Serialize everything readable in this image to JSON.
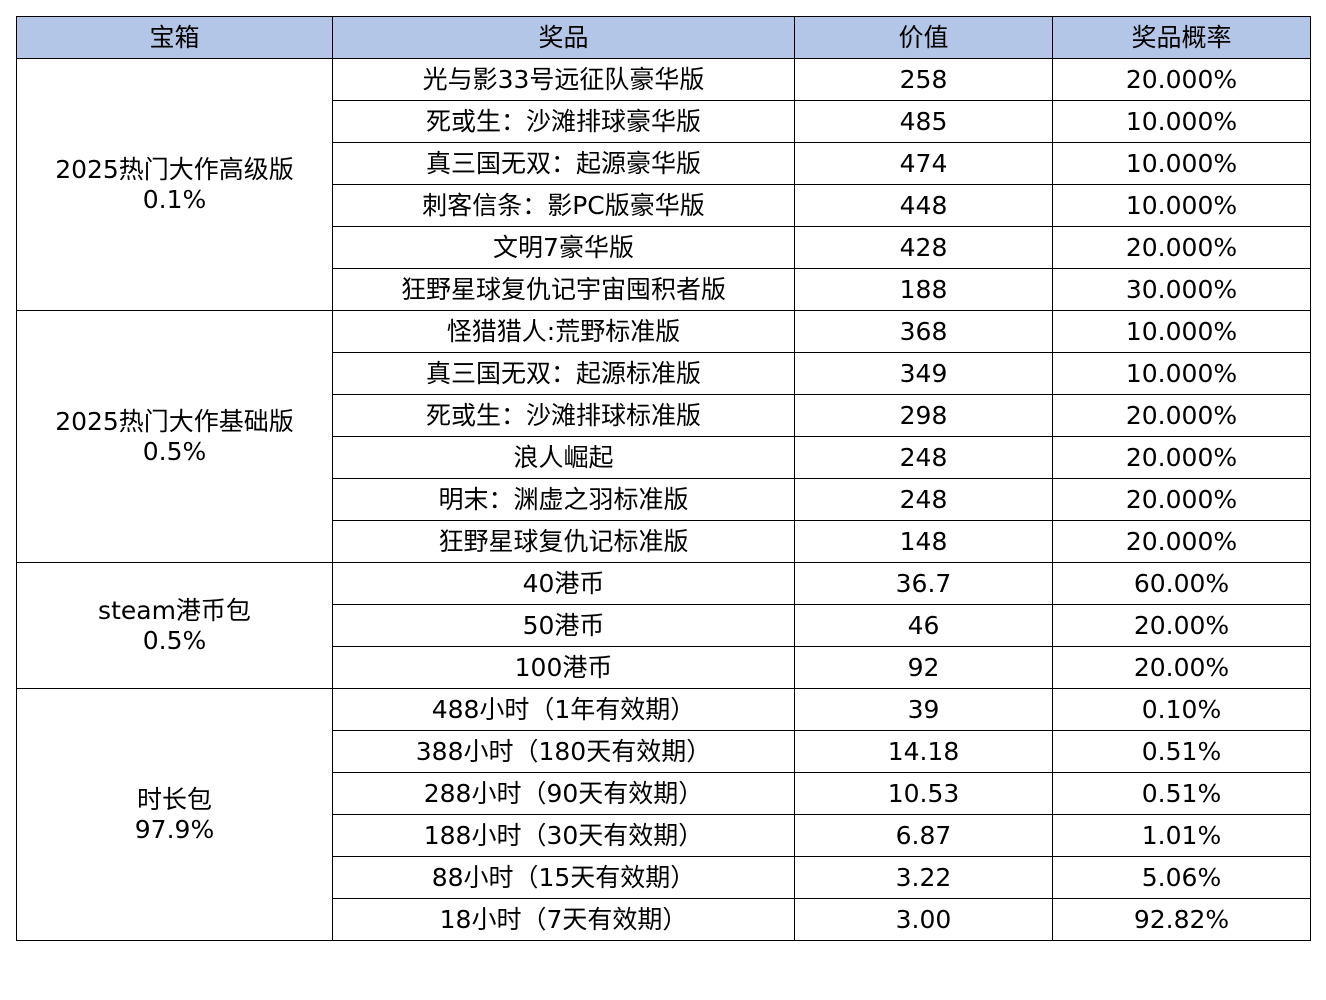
{
  "table": {
    "headers": [
      "宝箱",
      "奖品",
      "价值",
      "奖品概率"
    ],
    "groups": [
      {
        "name": "2025热门大作高级版",
        "rate": "0.1%",
        "rows": [
          {
            "prize": "光与影33号远征队豪华版",
            "value": "258",
            "prob": "20.000%"
          },
          {
            "prize": "死或生：沙滩排球豪华版",
            "value": "485",
            "prob": "10.000%"
          },
          {
            "prize": "真三国无双：起源豪华版",
            "value": "474",
            "prob": "10.000%"
          },
          {
            "prize": "刺客信条：影PC版豪华版",
            "value": "448",
            "prob": "10.000%"
          },
          {
            "prize": "文明7豪华版",
            "value": "428",
            "prob": "20.000%"
          },
          {
            "prize": "狂野星球复仇记宇宙囤积者版",
            "value": "188",
            "prob": "30.000%"
          }
        ]
      },
      {
        "name": "2025热门大作基础版",
        "rate": "0.5%",
        "rows": [
          {
            "prize": "怪猎猎人:荒野标准版",
            "value": "368",
            "prob": "10.000%"
          },
          {
            "prize": "真三国无双：起源标准版",
            "value": "349",
            "prob": "10.000%"
          },
          {
            "prize": "死或生：沙滩排球标准版",
            "value": "298",
            "prob": "20.000%"
          },
          {
            "prize": "浪人崛起",
            "value": "248",
            "prob": "20.000%"
          },
          {
            "prize": "明末：渊虚之羽标准版",
            "value": "248",
            "prob": "20.000%"
          },
          {
            "prize": "狂野星球复仇记标准版",
            "value": "148",
            "prob": "20.000%"
          }
        ]
      },
      {
        "name": "steam港币包",
        "rate": "0.5%",
        "rows": [
          {
            "prize": "40港币",
            "value": "36.7",
            "prob": "60.00%"
          },
          {
            "prize": "50港币",
            "value": "46",
            "prob": "20.00%"
          },
          {
            "prize": "100港币",
            "value": "92",
            "prob": "20.00%"
          }
        ]
      },
      {
        "name": "时长包",
        "rate": "97.9%",
        "rows": [
          {
            "prize": "488小时（1年有效期）",
            "value": "39",
            "prob": "0.10%"
          },
          {
            "prize": "388小时（180天有效期）",
            "value": "14.18",
            "prob": "0.51%"
          },
          {
            "prize": "288小时（90天有效期）",
            "value": "10.53",
            "prob": "0.51%"
          },
          {
            "prize": "188小时（30天有效期）",
            "value": "6.87",
            "prob": "1.01%"
          },
          {
            "prize": "88小时（15天有效期）",
            "value": "3.22",
            "prob": "5.06%"
          },
          {
            "prize": "18小时（7天有效期）",
            "value": "3.00",
            "prob": "92.82%"
          }
        ]
      }
    ]
  }
}
